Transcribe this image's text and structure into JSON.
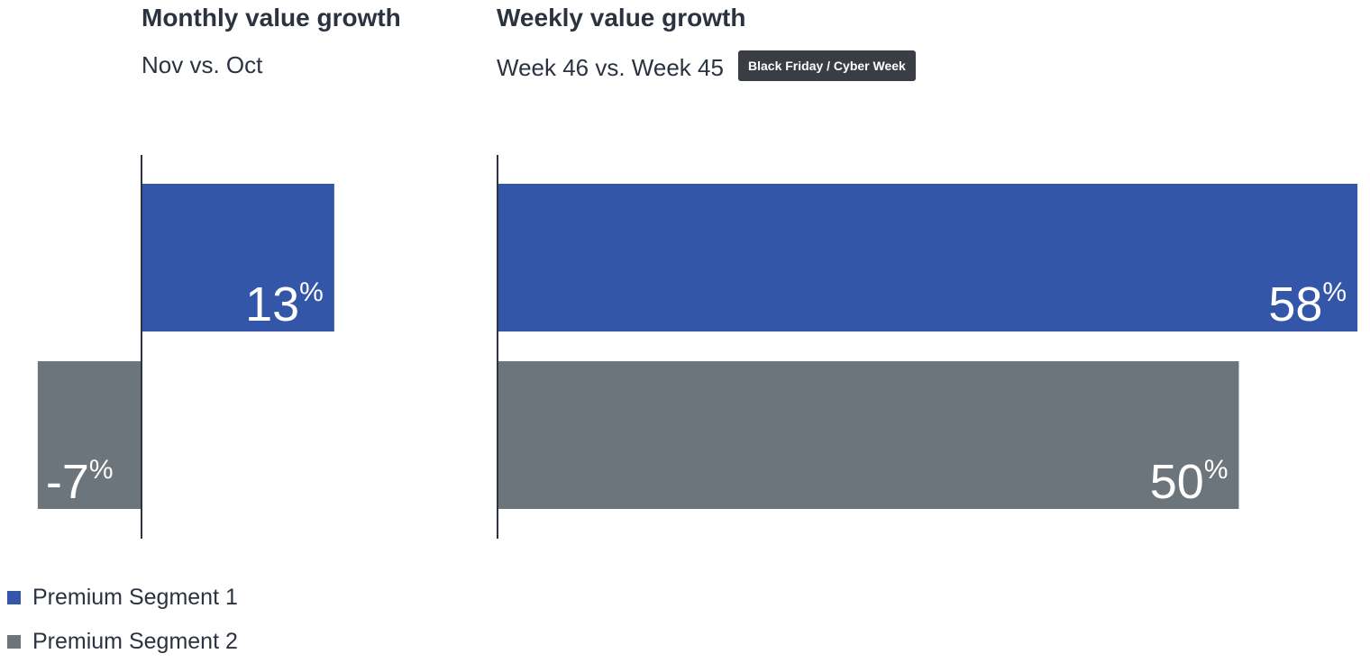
{
  "colors": {
    "segment1": "#3356a8",
    "segment2": "#6b757b",
    "axis": "#2c3340"
  },
  "chart_data": [
    {
      "type": "bar",
      "orientation": "horizontal",
      "title": "Monthly value growth",
      "subtitle": "Nov vs. Oct",
      "unit": "%",
      "series": [
        {
          "name": "Premium Segment 1",
          "values": [
            13
          ]
        },
        {
          "name": "Premium Segment 2",
          "values": [
            -7
          ]
        }
      ]
    },
    {
      "type": "bar",
      "orientation": "horizontal",
      "title": "Weekly value growth",
      "subtitle": "Week 46 vs. Week 45",
      "badge": "Black Friday / Cyber Week",
      "unit": "%",
      "series": [
        {
          "name": "Premium Segment 1",
          "values": [
            58
          ]
        },
        {
          "name": "Premium Segment 2",
          "values": [
            50
          ]
        }
      ]
    }
  ],
  "legend": {
    "items": [
      {
        "label": "Premium Segment 1"
      },
      {
        "label": "Premium Segment 2"
      }
    ]
  }
}
